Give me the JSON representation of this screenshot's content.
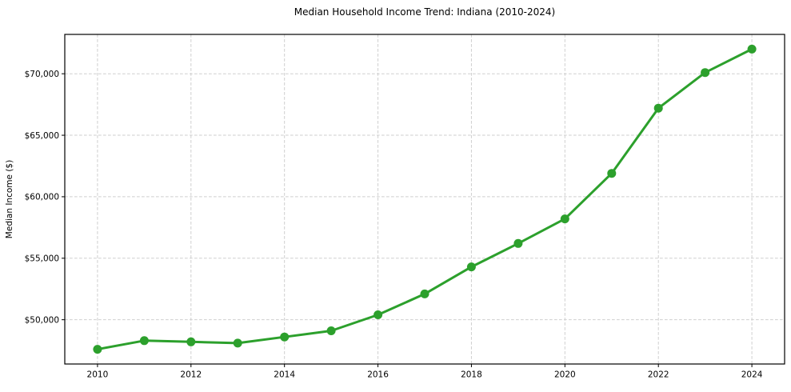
{
  "chart_data": {
    "type": "line",
    "title": "Median Household Income Trend: Indiana (2010-2024)",
    "xlabel": "",
    "ylabel": "Median Income ($)",
    "x": [
      2010,
      2011,
      2012,
      2013,
      2014,
      2015,
      2016,
      2017,
      2018,
      2019,
      2020,
      2021,
      2022,
      2023,
      2024
    ],
    "series": [
      {
        "name": "Median Household Income",
        "values": [
          47600,
          48300,
          48200,
          48100,
          48600,
          49100,
          50400,
          52100,
          54300,
          56200,
          58200,
          61900,
          67200,
          70100,
          72000
        ]
      }
    ],
    "xlim": [
      2009.3,
      2024.7
    ],
    "ylim": [
      46400,
      73200
    ],
    "xticks": [
      2010,
      2012,
      2014,
      2016,
      2018,
      2020,
      2022,
      2024
    ],
    "xtick_labels": [
      "2010",
      "2012",
      "2014",
      "2016",
      "2018",
      "2020",
      "2022",
      "2024"
    ],
    "yticks": [
      50000,
      55000,
      60000,
      65000,
      70000
    ],
    "ytick_labels": [
      "$50,000",
      "$55,000",
      "$60,000",
      "$65,000",
      "$70,000"
    ],
    "grid": true,
    "grid_style": "dashed",
    "legend": false,
    "styles": {
      "line_color": "#2ca02c",
      "marker_color": "#2ca02c",
      "grid_color": "#cfcfcf",
      "axis_color": "#000000",
      "background_color": "#ffffff"
    }
  }
}
